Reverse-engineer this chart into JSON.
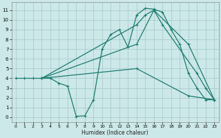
{
  "xlabel": "Humidex (Indice chaleur)",
  "bg_color": "#cce8e8",
  "grid_color": "#aacccc",
  "line_color": "#1a7a6e",
  "lines": [
    {
      "x": [
        0,
        1,
        2,
        3,
        4,
        5,
        6,
        7,
        8,
        9,
        10,
        11,
        12,
        13,
        14,
        15,
        16,
        17,
        18,
        19,
        20,
        21,
        22,
        23
      ],
      "y": [
        4,
        4,
        4,
        4,
        4,
        3.5,
        3.2,
        0.1,
        0.15,
        1.8,
        7.0,
        8.5,
        9.0,
        7.2,
        10.5,
        11.2,
        11.1,
        10.8,
        9.0,
        7.5,
        4.5,
        3.0,
        1.8,
        1.8
      ]
    },
    {
      "x": [
        3,
        14,
        15,
        16,
        17,
        21,
        22,
        23
      ],
      "y": [
        4,
        9.5,
        10.5,
        11.0,
        9.5,
        4.5,
        3.0,
        1.8
      ]
    },
    {
      "x": [
        3,
        14,
        16,
        20,
        23
      ],
      "y": [
        4,
        7.5,
        11.0,
        7.5,
        1.8
      ]
    },
    {
      "x": [
        3,
        14,
        20,
        23
      ],
      "y": [
        4,
        5.0,
        2.2,
        1.8
      ]
    }
  ],
  "xlim": [
    -0.5,
    23.5
  ],
  "ylim": [
    -0.5,
    11.8
  ],
  "xticks": [
    0,
    1,
    2,
    3,
    4,
    5,
    6,
    7,
    8,
    9,
    10,
    11,
    12,
    13,
    14,
    15,
    16,
    17,
    18,
    19,
    20,
    21,
    22,
    23
  ],
  "yticks": [
    0,
    1,
    2,
    3,
    4,
    5,
    6,
    7,
    8,
    9,
    10,
    11
  ],
  "figsize": [
    3.2,
    2.0
  ],
  "dpi": 100
}
